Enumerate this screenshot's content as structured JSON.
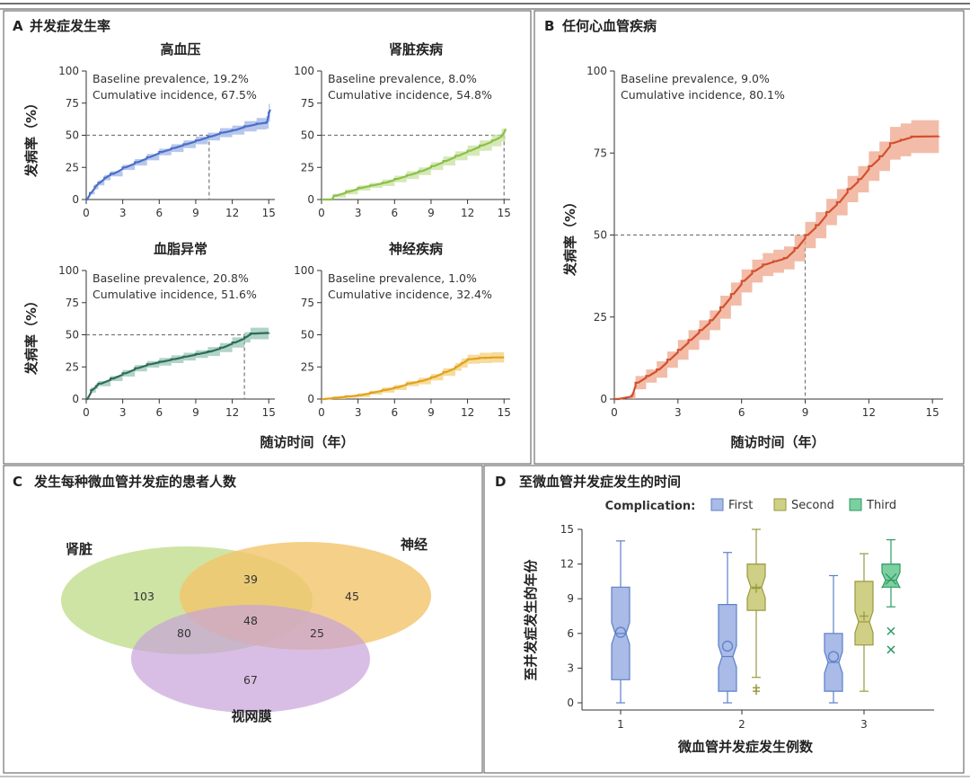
{
  "panel_labels": {
    "A": "A",
    "B": "B",
    "C": "C",
    "D": "D"
  },
  "colors": {
    "hypertension": "#4a6fc9",
    "hypertension_band": "#9fb3e6",
    "kidney": "#8cc04a",
    "kidney_band": "#c7e29f",
    "dyslipidemia": "#2f6b5a",
    "dyslipidemia_band": "#95c5b4",
    "neuro": "#e2a21a",
    "neuro_band": "#f4cf7e",
    "cvd": "#d2502e",
    "cvd_band": "#eea58c",
    "venn_kidney": "#c5df95",
    "venn_neuro": "#f2c46a",
    "venn_retina": "#c7a3d8",
    "box_first": "#a9bbe6",
    "box_first_edge": "#5e7fc9",
    "box_second": "#cfcf86",
    "box_second_edge": "#9a9a3e",
    "box_third": "#7ccf9f",
    "box_third_edge": "#2f9a63"
  },
  "chart_data": [
    {
      "id": "A1",
      "type": "line",
      "panel": "A",
      "panel_title": "并发症发生率",
      "title": "高血压",
      "annotation_lines": [
        "Baseline prevalence, 19.2%",
        "Cumulative incidence, 67.5%"
      ],
      "ylabel": "发病率（%）",
      "xlabel": "",
      "xlim": [
        0,
        15.5
      ],
      "ylim": [
        0,
        100
      ],
      "xticks": [
        0,
        3,
        6,
        9,
        12,
        15
      ],
      "yticks": [
        0,
        25,
        50,
        75,
        100
      ],
      "color_key": "hypertension",
      "median_time": 10.1,
      "series": [
        {
          "name": "高血压",
          "x": [
            0,
            0.3,
            0.7,
            1,
            1.5,
            2,
            3,
            4,
            5,
            6,
            7,
            8,
            9,
            10,
            11,
            12,
            13,
            14,
            14.8,
            15,
            15.1
          ],
          "values": [
            0,
            5,
            10,
            13,
            17,
            20,
            25,
            29,
            33,
            37,
            40,
            43,
            46,
            49,
            52,
            54,
            57,
            59,
            60,
            67.5,
            70
          ],
          "band_width": [
            0,
            1,
            2,
            2,
            2,
            2,
            2,
            2.5,
            2.5,
            2.5,
            3,
            3,
            3,
            3,
            3.5,
            3.5,
            4,
            4.5,
            5,
            7,
            8
          ]
        }
      ]
    },
    {
      "id": "A2",
      "type": "line",
      "panel": "A",
      "title": "肾脏疾病",
      "annotation_lines": [
        "Baseline prevalence, 8.0%",
        "Cumulative incidence, 54.8%"
      ],
      "xlim": [
        0,
        15.5
      ],
      "ylim": [
        0,
        100
      ],
      "xticks": [
        0,
        3,
        6,
        9,
        12,
        15
      ],
      "yticks": [
        0,
        25,
        50,
        75,
        100
      ],
      "color_key": "kidney",
      "median_time": 15.0,
      "series": [
        {
          "name": "肾脏疾病",
          "x": [
            0,
            0.8,
            1,
            2,
            3,
            4,
            5,
            6,
            7,
            8,
            9,
            10,
            11,
            12,
            13,
            14,
            14.8,
            15.1
          ],
          "values": [
            0,
            0,
            3,
            6,
            9,
            11,
            13,
            16,
            19,
            22,
            26,
            30,
            34,
            38,
            42,
            46,
            50,
            55
          ],
          "band_width": [
            0,
            0,
            1.5,
            2,
            2,
            2,
            2.5,
            2.5,
            3,
            3,
            3,
            3.5,
            3.5,
            4,
            4,
            4.5,
            5,
            8
          ]
        }
      ]
    },
    {
      "id": "A3",
      "type": "line",
      "panel": "A",
      "title": "血脂异常",
      "annotation_lines": [
        "Baseline prevalence, 20.8%",
        "Cumulative incidence, 51.6%"
      ],
      "ylabel": "发病率（%）",
      "xlim": [
        0,
        15.5
      ],
      "ylim": [
        0,
        100
      ],
      "xticks": [
        0,
        3,
        6,
        9,
        12,
        15
      ],
      "yticks": [
        0,
        25,
        50,
        75,
        100
      ],
      "color_key": "dyslipidemia",
      "median_time": 13.0,
      "series": [
        {
          "name": "血脂异常",
          "x": [
            0,
            0.4,
            0.8,
            1,
            2,
            3,
            4,
            5,
            6,
            7,
            8,
            9,
            10,
            11,
            12,
            13,
            13.5,
            15
          ],
          "values": [
            0,
            7,
            10,
            12,
            16,
            20,
            24,
            27,
            29,
            31,
            33,
            35,
            37,
            40,
            44,
            48,
            51,
            51.6
          ],
          "band_width": [
            0,
            2,
            2,
            2,
            2,
            2.5,
            2.5,
            2.5,
            3,
            3,
            3,
            3,
            3.5,
            3.5,
            4,
            4,
            4.5,
            4.5
          ]
        }
      ]
    },
    {
      "id": "A4",
      "type": "line",
      "panel": "A",
      "title": "神经疾病",
      "annotation_lines": [
        "Baseline prevalence, 1.0%",
        "Cumulative incidence, 32.4%"
      ],
      "xlim": [
        0,
        15.5
      ],
      "ylim": [
        0,
        100
      ],
      "xticks": [
        0,
        3,
        6,
        9,
        12,
        15
      ],
      "yticks": [
        0,
        25,
        50,
        75,
        100
      ],
      "color_key": "neuro",
      "median_time": null,
      "series": [
        {
          "name": "神经疾病",
          "x": [
            0,
            1,
            2,
            3,
            4,
            5,
            6,
            7,
            8,
            9,
            10,
            11,
            11.5,
            12,
            13,
            14,
            15
          ],
          "values": [
            0,
            1,
            2,
            3,
            5,
            7,
            9,
            12,
            14,
            17,
            21,
            25,
            28,
            31,
            32,
            32.4,
            32.4
          ],
          "band_width": [
            0,
            1,
            1,
            1.5,
            1.5,
            2,
            2,
            2,
            2.5,
            2.5,
            3,
            3,
            3.5,
            3.5,
            4,
            4,
            4
          ]
        }
      ]
    },
    {
      "id": "B",
      "type": "line",
      "panel": "B",
      "title": "任何心血管疾病",
      "annotation_lines": [
        "Baseline prevalence, 9.0%",
        "Cumulative incidence, 80.1%"
      ],
      "ylabel": "发病率（%）",
      "xlabel": "随访时间（年）",
      "xlim": [
        0,
        15.5
      ],
      "ylim": [
        0,
        100
      ],
      "xticks": [
        0,
        3,
        6,
        9,
        12,
        15
      ],
      "yticks": [
        0,
        25,
        50,
        75,
        100
      ],
      "color_key": "cvd",
      "median_time": 9.0,
      "series": [
        {
          "name": "任何心血管疾病",
          "x": [
            0,
            0.8,
            1,
            1.5,
            2,
            2.5,
            3,
            3.5,
            4,
            4.5,
            5,
            5.5,
            6,
            6.5,
            7,
            7.5,
            8,
            8.5,
            9,
            9.5,
            10,
            10.5,
            11,
            11.5,
            12,
            12.5,
            13,
            13.5,
            14,
            15.3
          ],
          "values": [
            0,
            1,
            5,
            7,
            9,
            12,
            15,
            18,
            21,
            24,
            28,
            32,
            36,
            39,
            41,
            42,
            43,
            46,
            50,
            53,
            57,
            60,
            64,
            67,
            71,
            74,
            78,
            79,
            80,
            80.1
          ],
          "band_width": [
            0,
            1,
            2,
            2,
            2.5,
            2.5,
            3,
            3,
            3,
            3,
            3.5,
            3.5,
            3.5,
            3.5,
            3.5,
            3.5,
            3.5,
            4,
            4,
            4,
            4,
            4,
            4,
            4,
            4.5,
            4.5,
            5,
            5,
            5,
            5
          ]
        }
      ]
    },
    {
      "id": "C",
      "type": "venn",
      "panel": "C",
      "title": "发生每种微血管并发症的患者人数",
      "sets": [
        {
          "name": "肾脏",
          "key": "kidney",
          "only": 103
        },
        {
          "name": "神经",
          "key": "neuro",
          "only": 45
        },
        {
          "name": "视网膜",
          "key": "retina",
          "only": 67
        }
      ],
      "intersections": {
        "kidney_neuro": 39,
        "kidney_retina": 80,
        "neuro_retina": 25,
        "all_three": 48
      }
    },
    {
      "id": "D",
      "type": "box",
      "panel": "D",
      "title": "至微血管并发症发生的时间",
      "legend_title": "Complication:",
      "legend": [
        "First",
        "Second",
        "Third"
      ],
      "ylabel": "至并发症发生的年份",
      "xlabel": "微血管并发症发生例数",
      "ylim": [
        0,
        15
      ],
      "yticks": [
        0,
        3,
        6,
        9,
        12,
        15
      ],
      "categories": [
        "1",
        "2",
        "3"
      ],
      "boxes": [
        {
          "category": "1",
          "series": "First",
          "min": 0,
          "q1": 2,
          "median": 6,
          "q3": 10,
          "max": 14,
          "mean": 6.1,
          "outliers": []
        },
        {
          "category": "2",
          "series": "First",
          "min": 0,
          "q1": 1,
          "median": 4,
          "q3": 8.5,
          "max": 13,
          "mean": 4.9,
          "outliers": []
        },
        {
          "category": "2",
          "series": "Second",
          "min": 2.2,
          "q1": 8,
          "median": 10,
          "q3": 12,
          "max": 15,
          "mean": 9.9,
          "outliers": [
            1.0,
            1.3
          ]
        },
        {
          "category": "3",
          "series": "First",
          "min": 0,
          "q1": 1,
          "median": 3.5,
          "q3": 6,
          "max": 11,
          "mean": 4.0,
          "outliers": []
        },
        {
          "category": "3",
          "series": "Second",
          "min": 1,
          "q1": 5,
          "median": 7,
          "q3": 10.5,
          "max": 12.9,
          "mean": 7.5,
          "outliers": []
        },
        {
          "category": "3",
          "series": "Third",
          "min": 8.3,
          "q1": 10,
          "median": 10.6,
          "q3": 12,
          "max": 14.1,
          "mean": 10.7,
          "outliers": [
            6.2,
            4.6
          ]
        }
      ]
    }
  ]
}
